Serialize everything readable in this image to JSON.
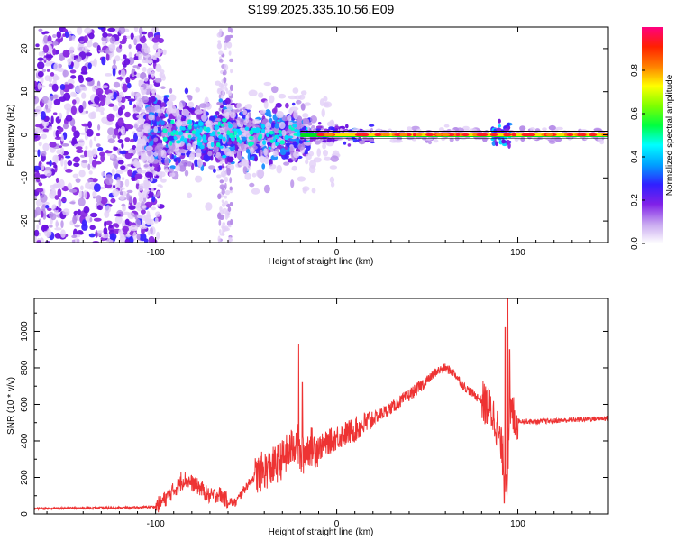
{
  "figure_title": "S199.2025.335.10.56.E09",
  "chart_data": [
    {
      "type": "heatmap",
      "title": "S199.2025.335.10.56.E09",
      "xlabel": "Height of straight line (km)",
      "ylabel": "Frequency (Hz)",
      "xlim": [
        -167,
        150
      ],
      "ylim": [
        -25,
        25
      ],
      "x_ticks": [
        -100,
        0,
        100
      ],
      "y_ticks": [
        -20,
        -10,
        0,
        10,
        20
      ],
      "colorbar": {
        "label": "Normalized spectral amplitude",
        "range": [
          0,
          1
        ],
        "ticks": [
          0.0,
          0.2,
          0.4,
          0.6,
          0.8
        ],
        "colors": [
          "#ffffff",
          "#c7a6f0",
          "#8020e8",
          "#3020ff",
          "#00a0ff",
          "#00ffff",
          "#00ff40",
          "#80ff00",
          "#ffff00",
          "#ff8000",
          "#ff2000",
          "#ff0080"
        ]
      },
      "features": {
        "carrier_line_hz": 0,
        "noise_cloud_x_range_km": [
          -167,
          -100
        ],
        "noisy_band_x_range_km": [
          -65,
          -58
        ],
        "strong_carrier_x_range_km": [
          -20,
          150
        ],
        "secondary_burst_x_km": 90
      }
    },
    {
      "type": "line",
      "xlabel": "Height of straight line (km)",
      "ylabel": "SNR (10 * v/v)",
      "xlim": [
        -167,
        150
      ],
      "ylim": [
        0,
        1180
      ],
      "x_ticks": [
        -100,
        0,
        100
      ],
      "y_ticks": [
        0,
        200,
        400,
        600,
        800,
        1000
      ],
      "series": [
        {
          "name": "SNR",
          "color": "#ee3333",
          "x": [
            -167,
            -140,
            -110,
            -100,
            -95,
            -88,
            -84,
            -80,
            -75,
            -70,
            -65,
            -60,
            -56,
            -50,
            -45,
            -40,
            -35,
            -30,
            -25,
            -22,
            -20,
            -18,
            -15,
            -10,
            -5,
            0,
            5,
            10,
            20,
            30,
            40,
            50,
            55,
            60,
            65,
            70,
            80,
            85,
            88,
            92,
            94,
            96,
            100,
            110,
            120,
            130,
            140,
            150
          ],
          "values": [
            30,
            32,
            35,
            40,
            80,
            150,
            190,
            170,
            140,
            95,
            110,
            70,
            60,
            150,
            210,
            240,
            260,
            300,
            360,
            400,
            300,
            330,
            370,
            360,
            390,
            420,
            440,
            460,
            520,
            580,
            650,
            730,
            780,
            800,
            770,
            700,
            620,
            570,
            500,
            300,
            200,
            560,
            510,
            505,
            510,
            515,
            520,
            525
          ]
        }
      ],
      "spikes": [
        {
          "x": -86,
          "value": 230
        },
        {
          "x": -21,
          "value": 930
        },
        {
          "x": -19,
          "value": 720
        },
        {
          "x": 93,
          "value": 1020
        },
        {
          "x": 94.5,
          "value": 1180
        },
        {
          "x": 95.5,
          "value": 900
        },
        {
          "x": 92.5,
          "value": 60
        }
      ]
    }
  ]
}
